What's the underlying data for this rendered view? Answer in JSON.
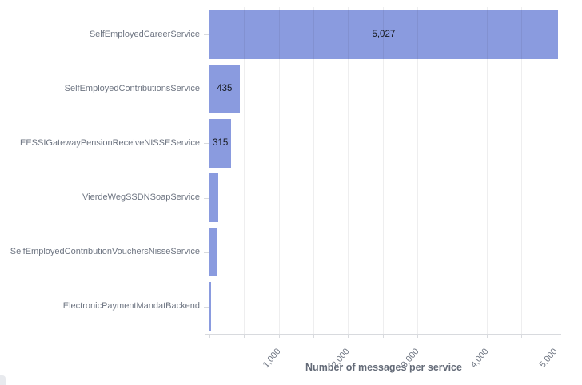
{
  "chart_data": {
    "type": "bar",
    "orientation": "horizontal",
    "title": "",
    "xlabel": "Number of messages per service",
    "ylabel": "",
    "categories": [
      "SelfEmployedCareerService",
      "SelfEmployedContributionsService",
      "EESSIGatewayPensionReceiveNISSEService",
      "VierdeWegSSDNSoapService",
      "SelfEmployedContributionVouchersNisseService",
      "ElectronicPaymentMandatBackend"
    ],
    "values": [
      5027,
      435,
      315,
      130,
      104,
      28
    ],
    "value_labels": [
      "5,027",
      "435",
      "315",
      "",
      "",
      ""
    ],
    "xlim": [
      0,
      5030
    ],
    "x_major_ticks": [
      {
        "value": 1000,
        "label": "1,000"
      },
      {
        "value": 2000,
        "label": "2,000"
      },
      {
        "value": 3000,
        "label": "3,000"
      },
      {
        "value": 4000,
        "label": "4,000"
      },
      {
        "value": 5000,
        "label": "5,000"
      }
    ],
    "x_minor_step": 500,
    "grid": true,
    "legend": "none",
    "colors": {
      "bar": "#8a9bdf",
      "grid": "rgba(40,40,55,0.08)",
      "axis_line": "#d8dade",
      "category_label": "#6e7582",
      "tick_label": "#6e7582",
      "value_label": "#16191e",
      "axis_title": "#646b78"
    }
  },
  "decor": {
    "corner_color": "#e8eaee"
  }
}
